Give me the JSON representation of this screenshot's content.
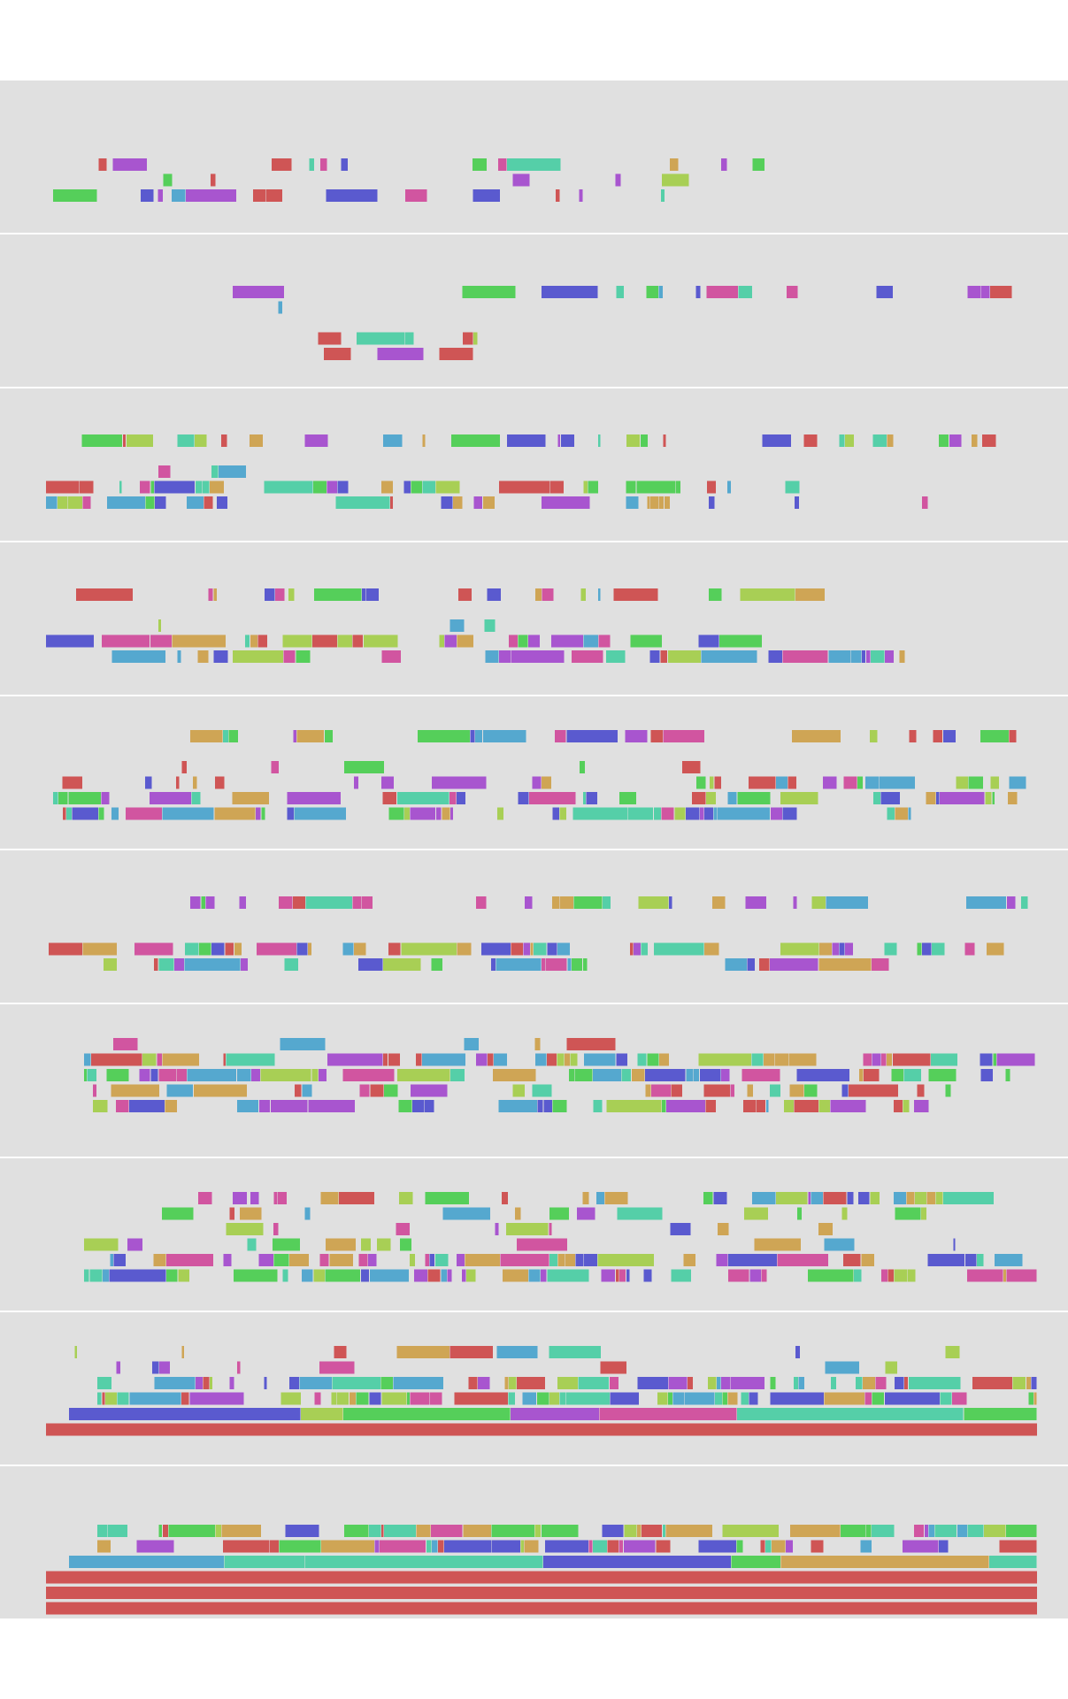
{
  "colors": [
    "#cf5555",
    "#d155a0",
    "#a855cf",
    "#5a5acf",
    "#55a8cf",
    "#55cfa8",
    "#55cf5a",
    "#a8cf55",
    "#cfa555"
  ],
  "panel_count": 10,
  "description_visible_text": ""
}
